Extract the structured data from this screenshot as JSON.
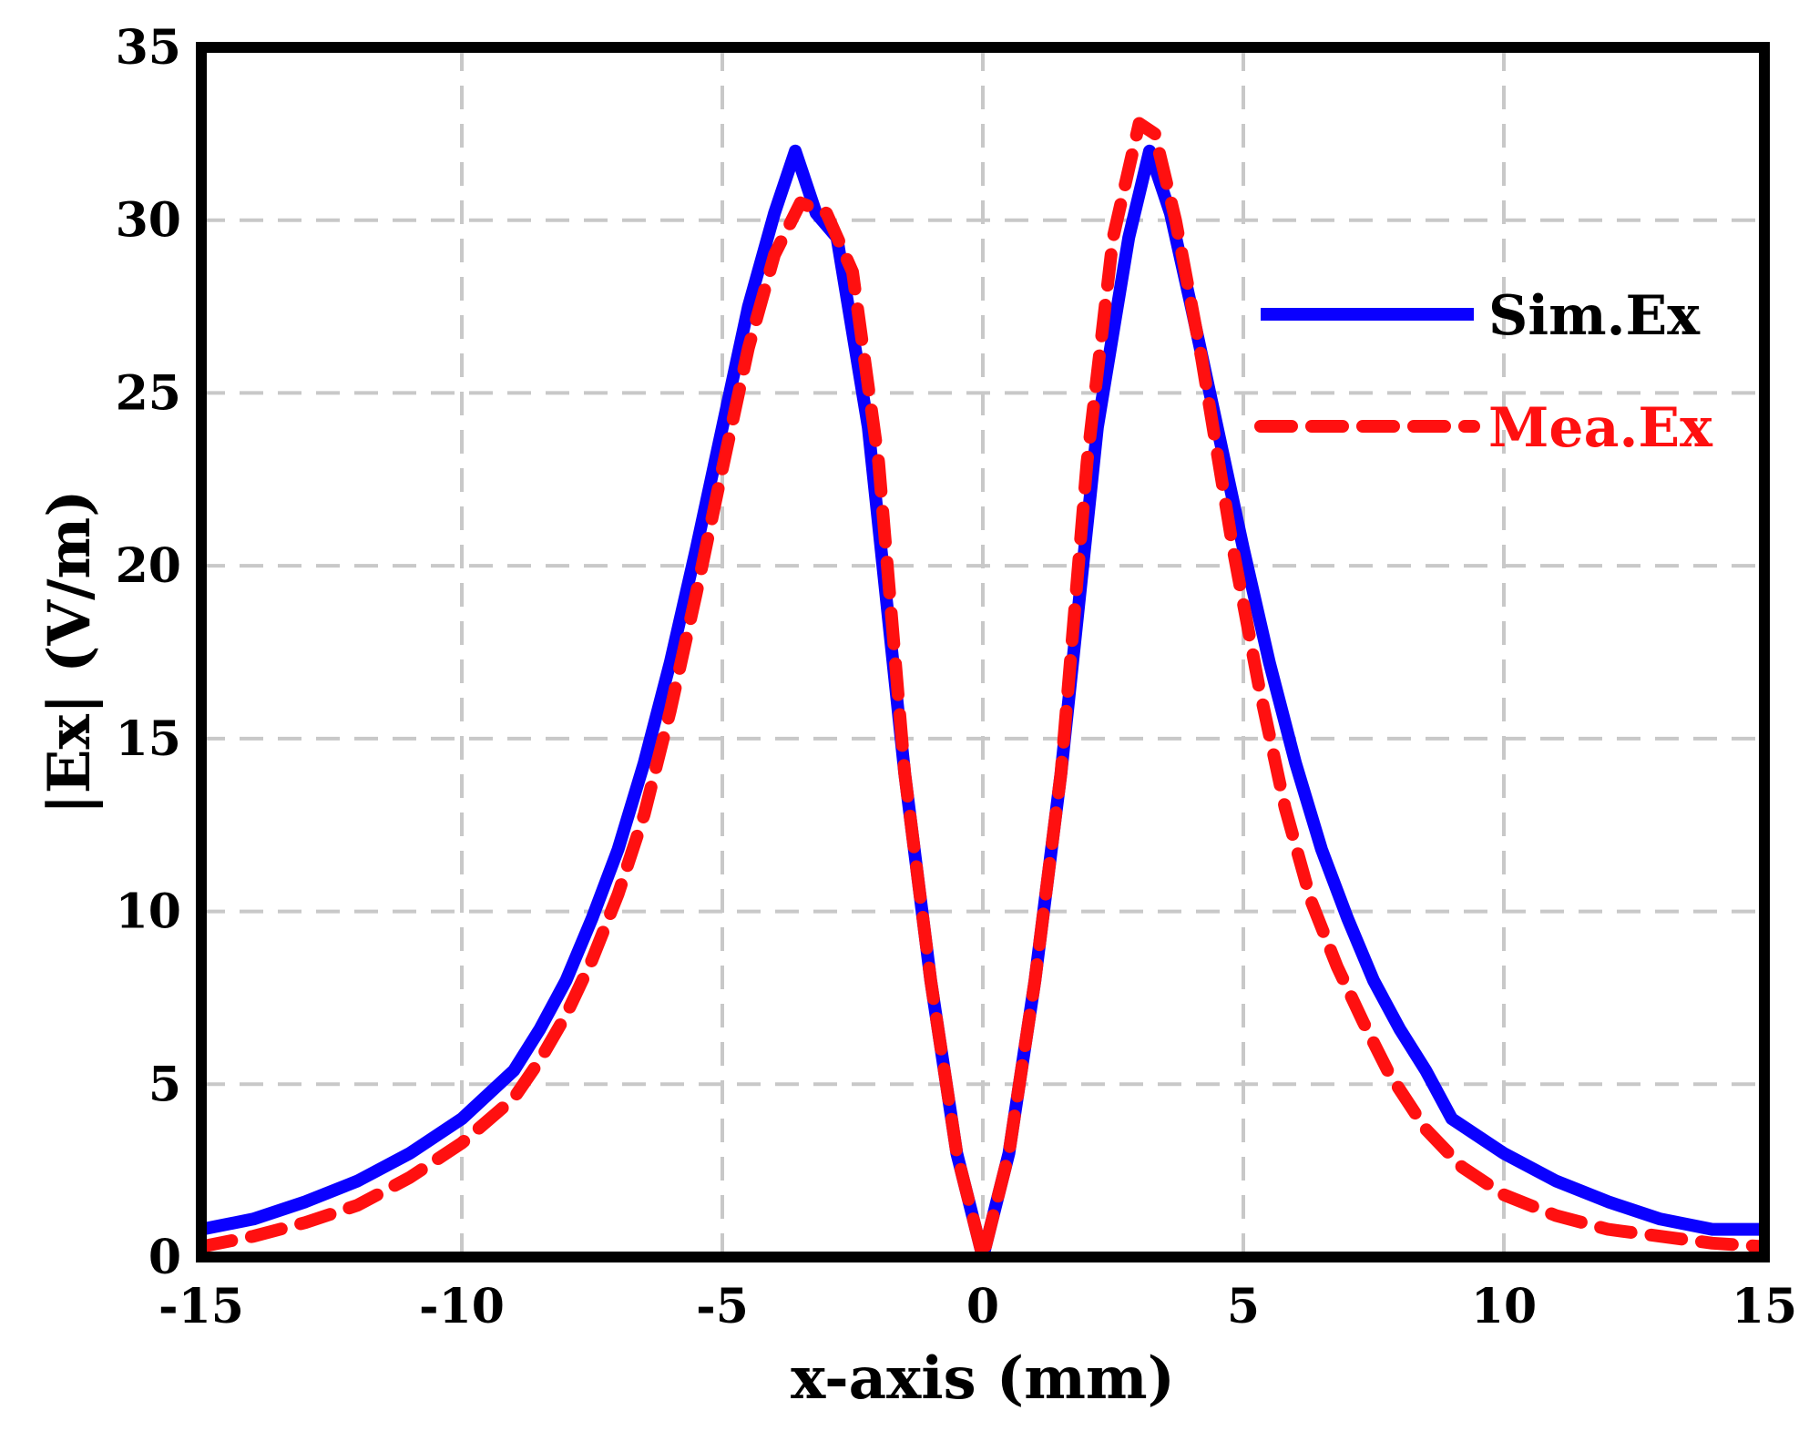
{
  "chart_data": {
    "type": "line",
    "title": "",
    "xlabel": "x-axis (mm)",
    "ylabel": "|Ex| (V/m)",
    "xlim": [
      -15,
      15
    ],
    "ylim": [
      0,
      35
    ],
    "xticks": [
      -15,
      -10,
      -5,
      0,
      5,
      10,
      15
    ],
    "yticks": [
      0,
      5,
      10,
      15,
      20,
      25,
      30,
      35
    ],
    "xtick_labels": [
      "-15",
      "-10",
      "-5",
      "0",
      "5",
      "10",
      "15"
    ],
    "ytick_labels": [
      "0",
      "5",
      "10",
      "15",
      "20",
      "25",
      "30",
      "35"
    ],
    "grid": true,
    "legend_position": "upper-right",
    "series": [
      {
        "name": "Sim.Ex",
        "color": "#0a00ff",
        "style": "solid",
        "x": [
          -15,
          -14,
          -13,
          -12,
          -11,
          -10,
          -9,
          -8.5,
          -8,
          -7.5,
          -7,
          -6.5,
          -6,
          -5.5,
          -5,
          -4.5,
          -4,
          -3.6,
          -3.2,
          -2.8,
          -2.2,
          -1.5,
          -1,
          -0.5,
          -0.2,
          0,
          0.2,
          0.5,
          1,
          1.5,
          2.2,
          2.8,
          3.2,
          3.6,
          4,
          4.5,
          5,
          5.5,
          6,
          6.5,
          7,
          7.5,
          8,
          8.5,
          9,
          10,
          11,
          12,
          13,
          14,
          15
        ],
        "y": [
          0.8,
          1.1,
          1.6,
          2.2,
          3.0,
          4.0,
          5.4,
          6.6,
          8.0,
          9.8,
          11.8,
          14.3,
          17.2,
          20.5,
          24.0,
          27.5,
          30.2,
          32.0,
          30.2,
          29.5,
          24.0,
          14.0,
          8.0,
          3.0,
          1.2,
          0.0,
          1.2,
          3.0,
          8.0,
          14.0,
          24.0,
          29.5,
          32.0,
          30.2,
          27.5,
          24.0,
          20.5,
          17.2,
          14.3,
          11.8,
          9.8,
          8.0,
          6.6,
          5.4,
          4.0,
          3.0,
          2.2,
          1.6,
          1.1,
          0.8,
          0.8
        ]
      },
      {
        "name": "Mea.Ex",
        "color": "#ff1010",
        "style": "dashed",
        "x": [
          -15,
          -14,
          -13,
          -12,
          -11,
          -10,
          -9,
          -8.5,
          -8,
          -7.5,
          -7,
          -6.5,
          -6,
          -5.5,
          -5,
          -4.5,
          -4,
          -3.5,
          -3,
          -2.5,
          -2,
          -1.5,
          -1,
          -0.5,
          -0.2,
          0,
          0.2,
          0.5,
          1,
          1.5,
          2,
          2.5,
          3,
          3.3,
          3.7,
          4.2,
          4.8,
          5.3,
          5.8,
          6.3,
          6.8,
          7.3,
          7.8,
          8.5,
          9.2,
          10,
          11,
          12,
          13,
          14,
          15
        ],
        "y": [
          0.3,
          0.6,
          1.0,
          1.5,
          2.3,
          3.3,
          4.6,
          5.7,
          7.0,
          8.6,
          10.5,
          12.8,
          15.8,
          19.2,
          22.8,
          26.3,
          29.0,
          30.5,
          30.2,
          28.5,
          23.0,
          14.0,
          8.0,
          3.0,
          1.2,
          0.0,
          1.2,
          3.0,
          8.0,
          14.0,
          23.0,
          29.5,
          32.8,
          32.5,
          30.0,
          26.0,
          20.5,
          16.5,
          13.0,
          10.3,
          8.4,
          6.8,
          5.3,
          3.7,
          2.6,
          1.8,
          1.2,
          0.8,
          0.6,
          0.4,
          0.3
        ]
      }
    ]
  }
}
